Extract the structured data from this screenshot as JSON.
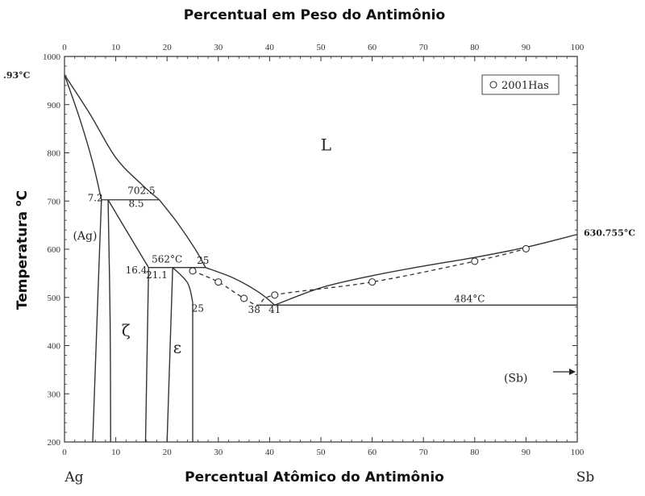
{
  "chart_data": {
    "type": "line",
    "title": "Percentual em Peso do Antimônio",
    "xlabel": "Percentual Atômico do Antimônio",
    "ylabel": "Temperatura °C",
    "ylabel_main": "Temperatura ",
    "ylabel_degree": "o",
    "ylabel_unit": "C",
    "xlim": [
      0,
      100
    ],
    "ylim": [
      200,
      1000
    ],
    "grid": false,
    "legend_position": "top-right",
    "element_left": "Ag",
    "element_right": "Sb",
    "x_ticks_bottom": [
      0,
      10,
      20,
      30,
      40,
      50,
      60,
      70,
      80,
      90,
      100
    ],
    "x_ticks_top": [
      0,
      10,
      20,
      30,
      40,
      50,
      60,
      70,
      80,
      90,
      100
    ],
    "y_ticks": [
      200,
      300,
      400,
      500,
      600,
      700,
      800,
      900,
      1000
    ],
    "phase_boundaries": [
      {
        "name": "liquidus-ag",
        "points": [
          [
            0,
            961.93
          ],
          [
            5,
            880
          ],
          [
            10,
            790
          ],
          [
            15,
            735
          ],
          [
            18.5,
            702.5
          ]
        ]
      },
      {
        "name": "solidus-ag",
        "points": [
          [
            0,
            961.93
          ],
          [
            3,
            870
          ],
          [
            5.5,
            780
          ],
          [
            7.2,
            702.5
          ]
        ]
      },
      {
        "name": "ag-solvus",
        "points": [
          [
            7.2,
            702.5
          ],
          [
            6.5,
            500
          ],
          [
            5.5,
            200
          ]
        ]
      },
      {
        "name": "zeta-left",
        "points": [
          [
            8.5,
            702.5
          ],
          [
            8.9,
            450
          ],
          [
            9,
            200
          ]
        ]
      },
      {
        "name": "zeta-right",
        "points": [
          [
            8.5,
            702.5
          ],
          [
            12,
            640
          ],
          [
            16.4,
            562
          ]
        ]
      },
      {
        "name": "zeta-right-lower",
        "points": [
          [
            16.4,
            562
          ],
          [
            15.8,
            200
          ]
        ]
      },
      {
        "name": "liquidus-zeta",
        "points": [
          [
            18.5,
            702.5
          ],
          [
            22,
            655
          ],
          [
            25.5,
            600
          ],
          [
            27.5,
            562
          ]
        ]
      },
      {
        "name": "eps-upper",
        "points": [
          [
            21.1,
            562
          ],
          [
            24,
            530
          ],
          [
            25,
            490
          ]
        ]
      },
      {
        "name": "eps-left",
        "points": [
          [
            21.1,
            562
          ],
          [
            20,
            200
          ]
        ]
      },
      {
        "name": "eps-right",
        "points": [
          [
            25,
            490
          ],
          [
            25,
            200
          ]
        ]
      },
      {
        "name": "eps-liquidus",
        "points": [
          [
            27.5,
            562
          ],
          [
            33,
            540
          ],
          [
            38,
            510
          ],
          [
            41,
            484
          ]
        ]
      },
      {
        "name": "sb-liquidus",
        "points": [
          [
            41,
            484
          ],
          [
            50,
            520
          ],
          [
            60,
            545
          ],
          [
            70,
            565
          ],
          [
            80,
            583
          ],
          [
            90,
            604
          ],
          [
            100,
            630.755
          ]
        ]
      }
    ],
    "invariant_lines": [
      {
        "label": "702.5",
        "temp": 702.5,
        "x_range": [
          7.2,
          18.5
        ]
      },
      {
        "label": "562°C",
        "temp": 562,
        "x_range": [
          16.4,
          27.5
        ]
      },
      {
        "label": "484°C",
        "temp": 484,
        "x_range": [
          38,
          100
        ]
      }
    ],
    "series": [
      {
        "name": "2001Has",
        "marker": "open-circle",
        "x": [
          25,
          30,
          35,
          41,
          60,
          80,
          90
        ],
        "y": [
          555,
          532,
          498,
          505,
          532,
          575,
          601
        ]
      }
    ],
    "annotations": [
      {
        "text": "7.2",
        "x": 6,
        "y": 700
      },
      {
        "text": "702.5",
        "x": 15,
        "y": 715
      },
      {
        "text": "8.5",
        "x": 14,
        "y": 688
      },
      {
        "text": "(Ag)",
        "x": 4,
        "y": 620
      },
      {
        "text": "16.4",
        "x": 14,
        "y": 550
      },
      {
        "text": "562°C",
        "x": 20,
        "y": 572
      },
      {
        "text": "21.1",
        "x": 18,
        "y": 540
      },
      {
        "text": "25",
        "x": 27,
        "y": 570
      },
      {
        "text": "25",
        "x": 26,
        "y": 470
      },
      {
        "text": "38",
        "x": 37,
        "y": 468
      },
      {
        "text": "41",
        "x": 41,
        "y": 468
      },
      {
        "text": "484°C",
        "x": 79,
        "y": 490
      },
      {
        "text": "L",
        "x": 51,
        "y": 805
      },
      {
        "text": "ζ",
        "x": 12,
        "y": 420
      },
      {
        "text": "ε",
        "x": 22,
        "y": 385
      },
      {
        "text": ".93°C",
        "x": -6,
        "y": 955
      },
      {
        "text": "630.755°C",
        "x": 103,
        "y": 628
      },
      {
        "text": "(Sb)",
        "x": 88,
        "y": 325
      }
    ]
  }
}
